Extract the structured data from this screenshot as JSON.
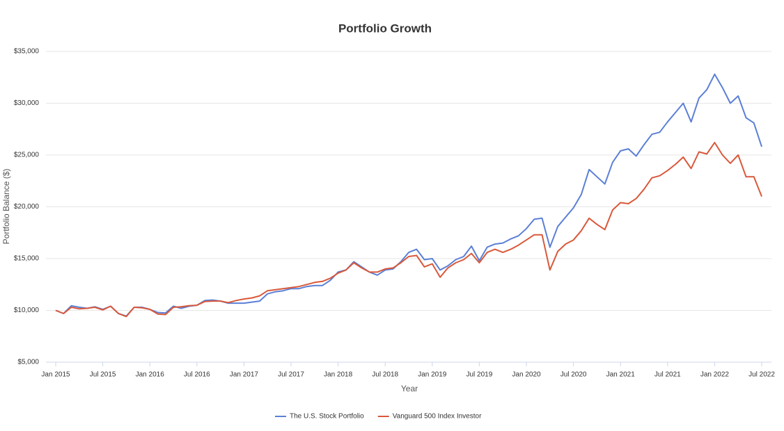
{
  "chart_data": {
    "type": "line",
    "title": "Portfolio Growth",
    "x_label": "Year",
    "y_label": "Portfolio Balance ($)",
    "categories": [
      "Jan 2015",
      null,
      null,
      null,
      null,
      null,
      "Jul 2015",
      null,
      null,
      null,
      null,
      null,
      "Jan 2016",
      null,
      null,
      null,
      null,
      null,
      "Jul 2016",
      null,
      null,
      null,
      null,
      null,
      "Jan 2017",
      null,
      null,
      null,
      null,
      null,
      "Jul 2017",
      null,
      null,
      null,
      null,
      null,
      "Jan 2018",
      null,
      null,
      null,
      null,
      null,
      "Jul 2018",
      null,
      null,
      null,
      null,
      null,
      "Jan 2019",
      null,
      null,
      null,
      null,
      null,
      "Jul 2019",
      null,
      null,
      null,
      null,
      null,
      "Jan 2020",
      null,
      null,
      null,
      null,
      null,
      "Jul 2020",
      null,
      null,
      null,
      null,
      null,
      "Jan 2021",
      null,
      null,
      null,
      null,
      null,
      "Jul 2021",
      null,
      null,
      null,
      null,
      null,
      "Jan 2022",
      null,
      null,
      null,
      null,
      null,
      "Jul 2022"
    ],
    "series": [
      {
        "name": "The U.S. Stock Portfolio",
        "color": "#5b7fd6",
        "values": [
          10000,
          9700,
          10450,
          10300,
          10200,
          10350,
          10100,
          10400,
          9700,
          9450,
          10300,
          10300,
          10100,
          9800,
          9750,
          10400,
          10200,
          10400,
          10500,
          10950,
          11000,
          10900,
          10700,
          10700,
          10700,
          10800,
          10900,
          11600,
          11800,
          11900,
          12100,
          12100,
          12300,
          12400,
          12400,
          12900,
          13700,
          13900,
          14700,
          14200,
          13700,
          13400,
          13900,
          14000,
          14700,
          15600,
          15900,
          14900,
          15000,
          13900,
          14300,
          14900,
          15200,
          16200,
          14800,
          16100,
          16400,
          16500,
          16900,
          17200,
          17900,
          18800,
          18900,
          16100,
          18100,
          19000,
          19900,
          21200,
          23600,
          22900,
          22200,
          24300,
          25400,
          25600,
          24900,
          26000,
          27000,
          27200,
          28200,
          29100,
          30000,
          28200,
          30500,
          31300,
          32800,
          31500,
          30000,
          30700,
          28600,
          28100,
          25800
        ]
      },
      {
        "name": "Vanguard 500 Index Investor",
        "color": "#d9583a",
        "values": [
          10000,
          9700,
          10300,
          10150,
          10200,
          10300,
          10050,
          10400,
          9700,
          9400,
          10300,
          10250,
          10100,
          9650,
          9600,
          10300,
          10350,
          10450,
          10500,
          10850,
          10900,
          10900,
          10750,
          10950,
          11100,
          11200,
          11400,
          11900,
          12000,
          12100,
          12200,
          12300,
          12500,
          12700,
          12800,
          13100,
          13600,
          13900,
          14600,
          14100,
          13700,
          13700,
          14000,
          14100,
          14600,
          15200,
          15300,
          14200,
          14500,
          13200,
          14100,
          14600,
          14900,
          15500,
          14600,
          15600,
          15900,
          15600,
          15900,
          16300,
          16800,
          17300,
          17300,
          13900,
          15700,
          16400,
          16800,
          17700,
          18900,
          18300,
          17800,
          19700,
          20400,
          20300,
          20800,
          21700,
          22800,
          23000,
          23500,
          24100,
          24800,
          23700,
          25300,
          25100,
          26200,
          25000,
          24200,
          25000,
          22900,
          22900,
          21000
        ]
      }
    ],
    "ylim": [
      5000,
      35000
    ],
    "yticks": [
      {
        "value": 5000,
        "label": "$5,000"
      },
      {
        "value": 10000,
        "label": "$10,000"
      },
      {
        "value": 15000,
        "label": "$15,000"
      },
      {
        "value": 20000,
        "label": "$20,000"
      },
      {
        "value": 25000,
        "label": "$25,000"
      },
      {
        "value": 30000,
        "label": "$30,000"
      },
      {
        "value": 35000,
        "label": "$35,000"
      }
    ],
    "grid": true,
    "legend": "bottom"
  }
}
